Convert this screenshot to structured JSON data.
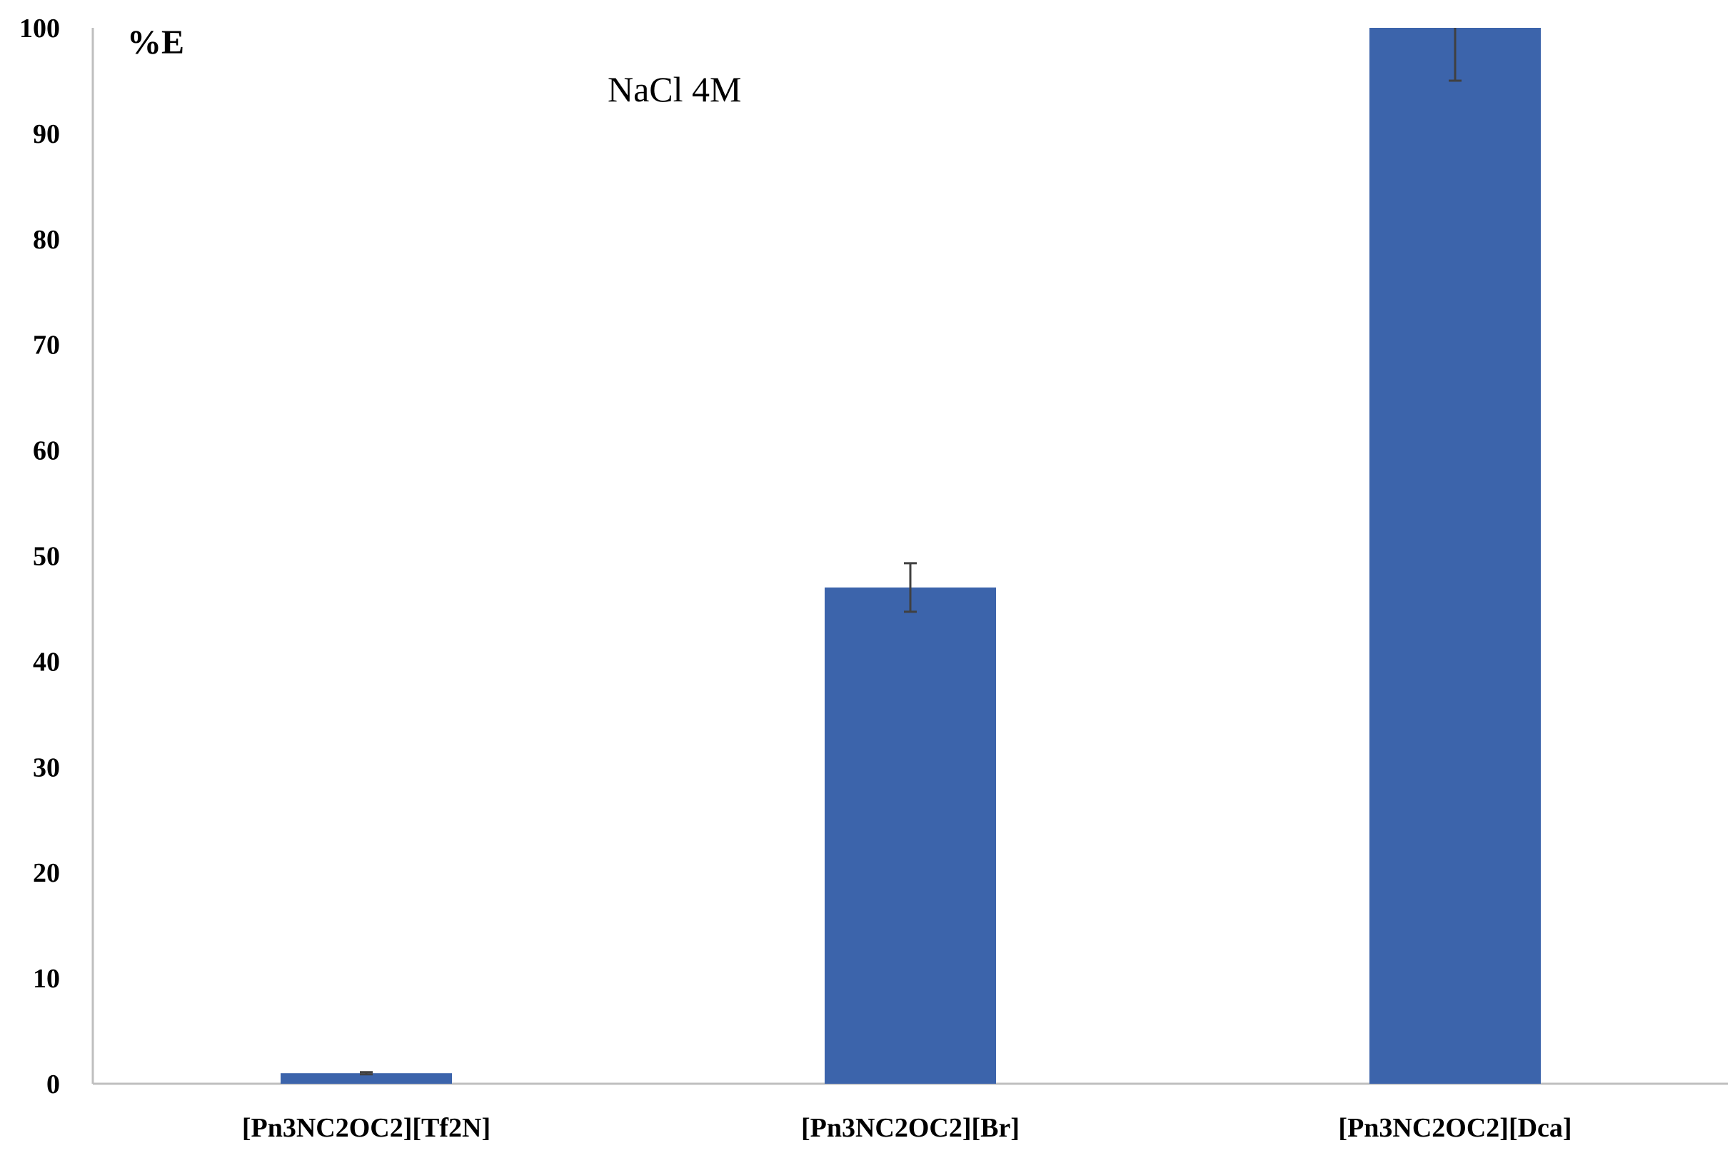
{
  "chart_data": {
    "type": "bar",
    "ylabel": "%E",
    "annotation": "NaCl 4M",
    "categories": [
      "[Pn3NC2OC2][Tf2N]",
      "[Pn3NC2OC2][Br]",
      "[Pn3NC2OC2][Dca]"
    ],
    "values": [
      1,
      47,
      100
    ],
    "error": [
      0.1,
      2.3,
      5
    ],
    "ylim": [
      0,
      100
    ],
    "yticks": [
      0,
      10,
      20,
      30,
      40,
      50,
      60,
      70,
      80,
      90,
      100
    ],
    "grid": false,
    "legend": "none",
    "bar_color": "#3c64ab",
    "error_color": "#404040",
    "axis_color": "#bfbfbf"
  }
}
